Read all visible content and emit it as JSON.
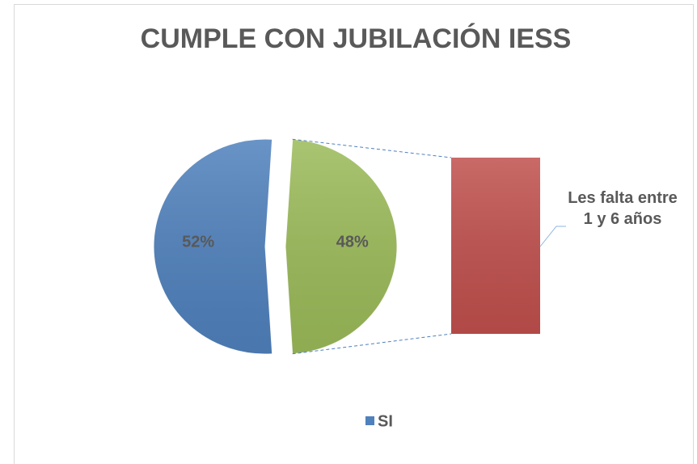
{
  "chart_data": {
    "type": "pie",
    "title": "CUMPLE CON JUBILACIÓN IESS",
    "categories": [
      "SI",
      null
    ],
    "values": [
      52,
      48
    ],
    "value_labels": [
      "52%",
      "48%"
    ],
    "colors": [
      "#4f81bd",
      "#9bbb59"
    ],
    "bar": {
      "label": "Les falta entre 1 y 6 años",
      "value": 48,
      "color": "#c0504d"
    }
  }
}
